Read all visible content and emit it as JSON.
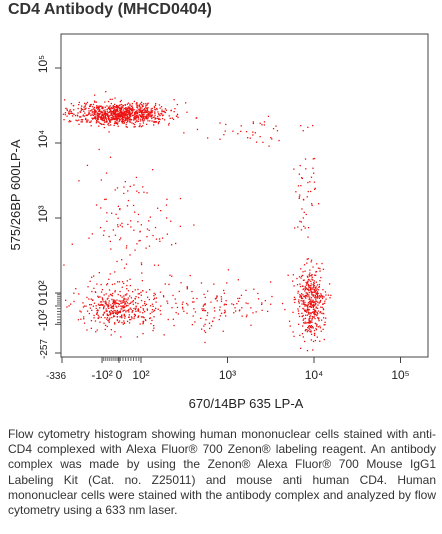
{
  "page": {
    "title": "CD4 Antibody (MHCD0404)",
    "caption": "Flow cytometry histogram showing human mononuclear cells stained with anti-CD4 complexed with Alexa Fluor® 700 Zenon® labeling reagent. An antibody complex was made by using the Zenon® Alexa Fluor® 700 Mouse IgG1 Labeling Kit (Cat. no. Z25011) and mouse anti human CD4. Human mononuclear cells were stained with the antibody complex and analyzed by flow cytometry using a 633 nm laser."
  },
  "chart_data": {
    "type": "scatter",
    "title": "",
    "xlabel": "670/14BP 635 LP-A",
    "ylabel": "575/26BP 600LP-A",
    "x_scale": "biexponential (logicle)",
    "y_scale": "biexponential (logicle)",
    "xlim": [
      -336,
      250000
    ],
    "ylim": [
      -257,
      250000
    ],
    "x_ticks": [
      "-336",
      "-10²",
      "0",
      "10²",
      "10³",
      "10⁴",
      "10⁵"
    ],
    "y_ticks": [
      "-257",
      "-10²",
      "0",
      "10²",
      "10³",
      "10⁴",
      "10⁵"
    ],
    "grid": false,
    "point_color": "#ee1111",
    "populations": [
      {
        "x_center": 0,
        "y_center": 25000,
        "x_spread": 180,
        "y_spread": 9000,
        "count": 900
      },
      {
        "x_center": 0,
        "y_center": 0,
        "x_spread": 150,
        "y_spread": 120,
        "count": 420
      },
      {
        "x_center": 9000,
        "y_center": 30,
        "x_spread": 3500,
        "y_spread": 180,
        "count": 420
      },
      {
        "x_center": 800,
        "y_center": 0,
        "x_spread": 2500,
        "y_spread": 150,
        "count": 140
      },
      {
        "x_center": 30,
        "y_center": 800,
        "x_spread": 200,
        "y_spread": 2500,
        "count": 110
      },
      {
        "x_center": 8000,
        "y_center": 2000,
        "x_spread": 3000,
        "y_spread": 6000,
        "count": 45
      },
      {
        "x_center": 2000,
        "y_center": 15000,
        "x_spread": 6000,
        "y_spread": 8000,
        "count": 40
      }
    ]
  }
}
